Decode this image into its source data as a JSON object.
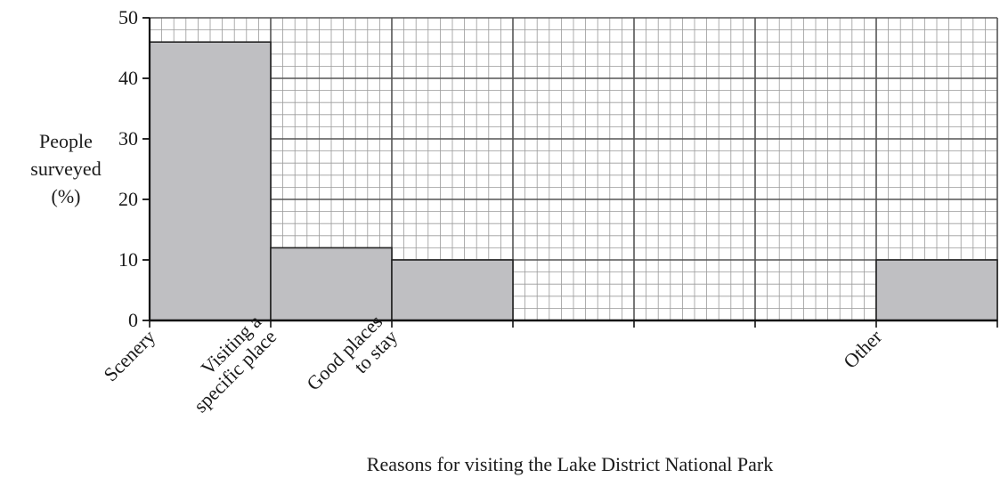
{
  "chart_data": {
    "type": "bar",
    "categories": [
      [
        "Scenery"
      ],
      [
        "Visiting a",
        "specific place"
      ],
      [
        "Good places",
        "to stay"
      ],
      [
        ""
      ],
      [
        ""
      ],
      [
        ""
      ],
      [
        "Other"
      ]
    ],
    "values": [
      46,
      12,
      10,
      null,
      null,
      null,
      10
    ],
    "title": "",
    "xlabel": "Reasons for visiting the Lake District National Park",
    "ylabel": [
      "People",
      "surveyed",
      "(%)"
    ],
    "ylim": [
      0,
      50
    ],
    "yticks": [
      0,
      10,
      20,
      30,
      40,
      50
    ],
    "grid": true,
    "grid_minor_step": 2,
    "grid_major_step": 10,
    "colors": {
      "bar_fill": "#bfbfc2",
      "bar_stroke": "#222222",
      "grid_minor": "#9a9a9a",
      "grid_major": "#555555",
      "axis": "#111111"
    }
  }
}
